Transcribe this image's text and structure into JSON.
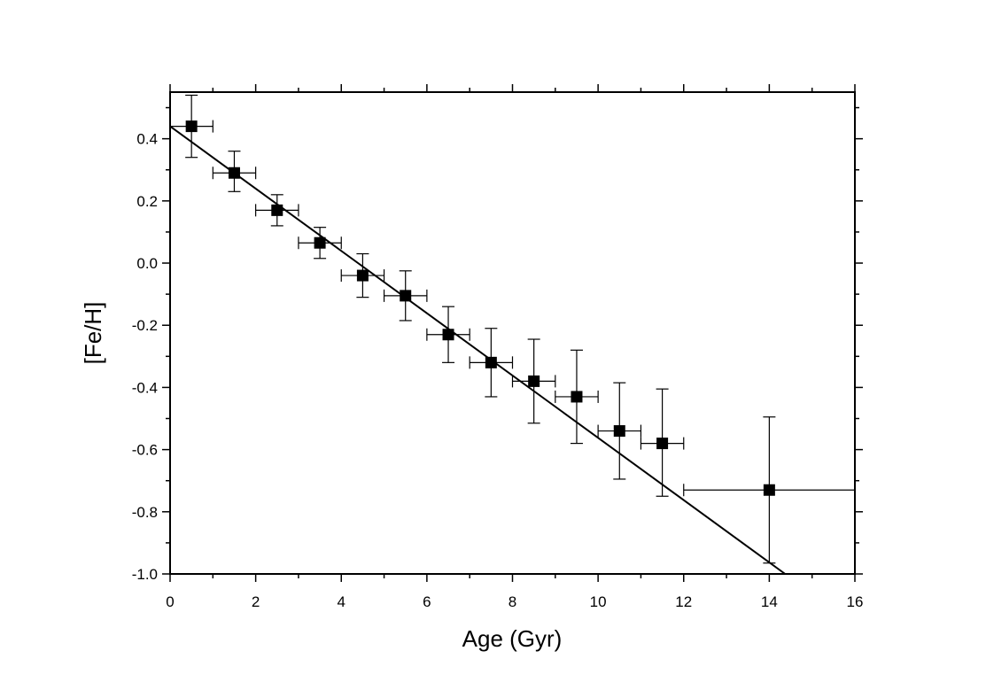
{
  "chart_data": {
    "type": "scatter",
    "title": "",
    "xlabel": "Age (Gyr)",
    "ylabel": "[Fe/H]",
    "xlim": [
      0,
      16
    ],
    "ylim": [
      -1.0,
      0.55
    ],
    "x_ticks": [
      0,
      2,
      4,
      6,
      8,
      10,
      12,
      14,
      16
    ],
    "x_tick_labels": [
      "0",
      "2",
      "4",
      "6",
      "8",
      "10",
      "12",
      "14",
      "16"
    ],
    "y_ticks": [
      -1.0,
      -0.8,
      -0.6,
      -0.4,
      -0.2,
      0.0,
      0.2,
      0.4
    ],
    "y_tick_labels": [
      "-1.0",
      "-0.8",
      "-0.6",
      "-0.4",
      "-0.2",
      "0.0",
      "0.2",
      "0.4"
    ],
    "grid": false,
    "legend": "none",
    "marker": "filled-square",
    "series": [
      {
        "points": [
          {
            "x": 0.5,
            "y": 0.44,
            "xerr": 0.5,
            "yerr_low": 0.1,
            "yerr_high": 0.1
          },
          {
            "x": 1.5,
            "y": 0.29,
            "xerr": 0.5,
            "yerr_low": 0.06,
            "yerr_high": 0.07
          },
          {
            "x": 2.5,
            "y": 0.17,
            "xerr": 0.5,
            "yerr_low": 0.05,
            "yerr_high": 0.05
          },
          {
            "x": 3.5,
            "y": 0.065,
            "xerr": 0.5,
            "yerr_low": 0.05,
            "yerr_high": 0.05
          },
          {
            "x": 4.5,
            "y": -0.04,
            "xerr": 0.5,
            "yerr_low": 0.07,
            "yerr_high": 0.07
          },
          {
            "x": 5.5,
            "y": -0.105,
            "xerr": 0.5,
            "yerr_low": 0.08,
            "yerr_high": 0.08
          },
          {
            "x": 6.5,
            "y": -0.23,
            "xerr": 0.5,
            "yerr_low": 0.09,
            "yerr_high": 0.09
          },
          {
            "x": 7.5,
            "y": -0.32,
            "xerr": 0.5,
            "yerr_low": 0.11,
            "yerr_high": 0.11
          },
          {
            "x": 8.5,
            "y": -0.38,
            "xerr": 0.5,
            "yerr_low": 0.135,
            "yerr_high": 0.135
          },
          {
            "x": 9.5,
            "y": -0.43,
            "xerr": 0.5,
            "yerr_low": 0.15,
            "yerr_high": 0.15
          },
          {
            "x": 10.5,
            "y": -0.54,
            "xerr": 0.5,
            "yerr_low": 0.155,
            "yerr_high": 0.155
          },
          {
            "x": 11.5,
            "y": -0.58,
            "xerr": 0.5,
            "yerr_low": 0.17,
            "yerr_high": 0.175
          },
          {
            "x": 14.0,
            "y": -0.73,
            "xerr": 2.0,
            "yerr_low": 0.235,
            "yerr_high": 0.235
          }
        ]
      }
    ],
    "fit_line": {
      "x0": 0,
      "y0": 0.44,
      "x1": 14.37,
      "y1": -1.0
    },
    "colors": {
      "marker": "#000000",
      "line": "#000000"
    }
  }
}
